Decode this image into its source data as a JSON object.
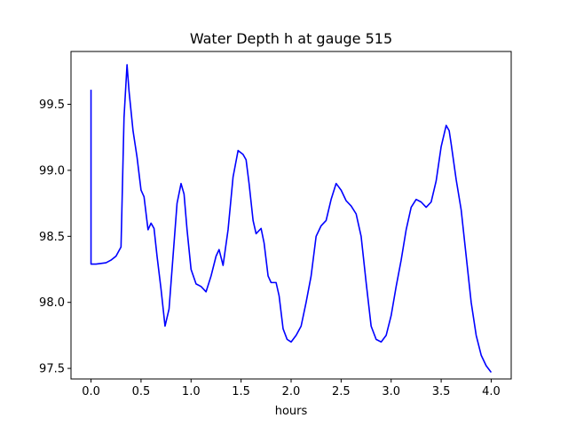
{
  "chart_data": {
    "type": "line",
    "title": "Water Depth h at gauge 515",
    "xlabel": "hours",
    "ylabel": "",
    "xlim": [
      -0.2,
      4.2
    ],
    "ylim": [
      97.42,
      99.9
    ],
    "xticks": [
      0.0,
      0.5,
      1.0,
      1.5,
      2.0,
      2.5,
      3.0,
      3.5,
      4.0
    ],
    "xtick_labels": [
      "0.0",
      "0.5",
      "1.0",
      "1.5",
      "2.0",
      "2.5",
      "3.0",
      "3.5",
      "4.0"
    ],
    "yticks": [
      97.5,
      98.0,
      98.5,
      99.0,
      99.5
    ],
    "ytick_labels": [
      "97.5",
      "98.0",
      "98.5",
      "99.0",
      "99.5"
    ],
    "grid": false,
    "series": [
      {
        "color": "#0000ff",
        "x": [
          0.0,
          0.0,
          0.05,
          0.1,
          0.15,
          0.2,
          0.25,
          0.3,
          0.33,
          0.36,
          0.38,
          0.42,
          0.46,
          0.5,
          0.53,
          0.57,
          0.6,
          0.63,
          0.66,
          0.7,
          0.74,
          0.78,
          0.82,
          0.86,
          0.9,
          0.93,
          0.96,
          1.0,
          1.05,
          1.1,
          1.15,
          1.2,
          1.25,
          1.28,
          1.32,
          1.37,
          1.42,
          1.47,
          1.52,
          1.55,
          1.58,
          1.62,
          1.65,
          1.7,
          1.73,
          1.77,
          1.8,
          1.85,
          1.88,
          1.92,
          1.96,
          2.0,
          2.05,
          2.1,
          2.15,
          2.2,
          2.25,
          2.3,
          2.35,
          2.4,
          2.45,
          2.5,
          2.55,
          2.6,
          2.65,
          2.7,
          2.75,
          2.8,
          2.85,
          2.9,
          2.95,
          3.0,
          3.05,
          3.1,
          3.15,
          3.2,
          3.25,
          3.3,
          3.35,
          3.4,
          3.45,
          3.5,
          3.55,
          3.58,
          3.6,
          3.65,
          3.7,
          3.75,
          3.8,
          3.85,
          3.9,
          3.95,
          4.0
        ],
        "y": [
          99.61,
          98.29,
          98.29,
          98.295,
          98.3,
          98.32,
          98.35,
          98.42,
          99.4,
          99.8,
          99.6,
          99.3,
          99.1,
          98.85,
          98.8,
          98.55,
          98.6,
          98.56,
          98.35,
          98.1,
          97.82,
          97.95,
          98.35,
          98.75,
          98.9,
          98.82,
          98.55,
          98.25,
          98.14,
          98.12,
          98.08,
          98.2,
          98.35,
          98.4,
          98.28,
          98.55,
          98.95,
          99.15,
          99.12,
          99.08,
          98.9,
          98.62,
          98.52,
          98.56,
          98.45,
          98.2,
          98.15,
          98.15,
          98.05,
          97.8,
          97.72,
          97.7,
          97.75,
          97.82,
          98.0,
          98.2,
          98.5,
          98.58,
          98.62,
          98.78,
          98.9,
          98.85,
          98.77,
          98.73,
          98.67,
          98.5,
          98.15,
          97.82,
          97.72,
          97.7,
          97.75,
          97.9,
          98.12,
          98.32,
          98.55,
          98.72,
          98.78,
          98.76,
          98.72,
          98.76,
          98.92,
          99.18,
          99.34,
          99.3,
          99.2,
          98.93,
          98.7,
          98.35,
          98.0,
          97.75,
          97.6,
          97.52,
          97.47
        ]
      }
    ]
  }
}
